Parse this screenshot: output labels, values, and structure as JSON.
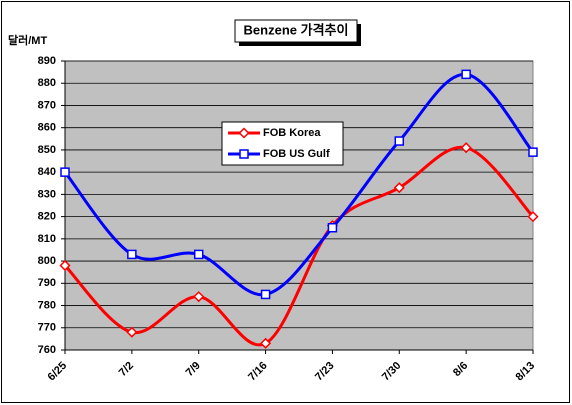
{
  "chart_data": {
    "type": "line",
    "title": "Benzene 가격추이",
    "y_label": "달러/MT",
    "categories": [
      "6/25",
      "7/2",
      "7/9",
      "7/16",
      "7/23",
      "7/30",
      "8/6",
      "8/13"
    ],
    "series": [
      {
        "name": "FOB Korea",
        "color": "#ff0000",
        "marker": "diamond",
        "values": [
          798,
          768,
          784,
          763,
          816,
          833,
          851,
          820
        ]
      },
      {
        "name": "FOB US Gulf",
        "color": "#0000ff",
        "marker": "square",
        "values": [
          840,
          803,
          803,
          785,
          815,
          854,
          884,
          849
        ]
      }
    ],
    "ylim": [
      760,
      890
    ],
    "yticks": [
      760,
      770,
      780,
      790,
      800,
      810,
      820,
      830,
      840,
      850,
      860,
      870,
      880,
      890
    ],
    "grid": true,
    "smooth": true,
    "plot_background": "#c0c0c0"
  }
}
